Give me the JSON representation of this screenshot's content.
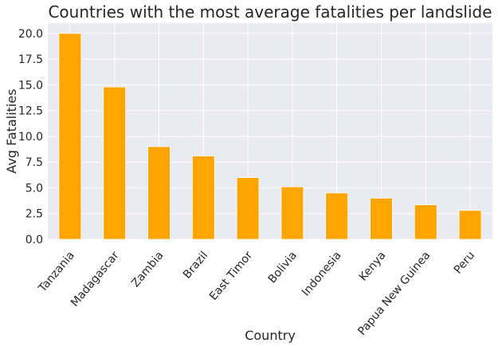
{
  "chart_data": {
    "type": "bar",
    "title": "Countries with the most average fatalities per landslide",
    "xlabel": "Country",
    "ylabel": "Avg Fatalities",
    "categories": [
      "Tanzania",
      "Madagascar",
      "Zambia",
      "Brazil",
      "East Timor",
      "Bolivia",
      "Indonesia",
      "Kenya",
      "Papua New Guinea",
      "Peru"
    ],
    "values": [
      20.0,
      14.8,
      9.0,
      8.1,
      6.0,
      5.1,
      4.5,
      4.0,
      3.35,
      2.8
    ],
    "ylim": [
      0,
      21
    ],
    "yticks": [
      "0.0",
      "2.5",
      "5.0",
      "7.5",
      "10.0",
      "12.5",
      "15.0",
      "17.5",
      "20.0"
    ],
    "grid": true,
    "legend": "none",
    "colors": {
      "bar": "#FFA500",
      "plot_background": "#EAEAF2",
      "grid": "#FFFFFF"
    }
  }
}
